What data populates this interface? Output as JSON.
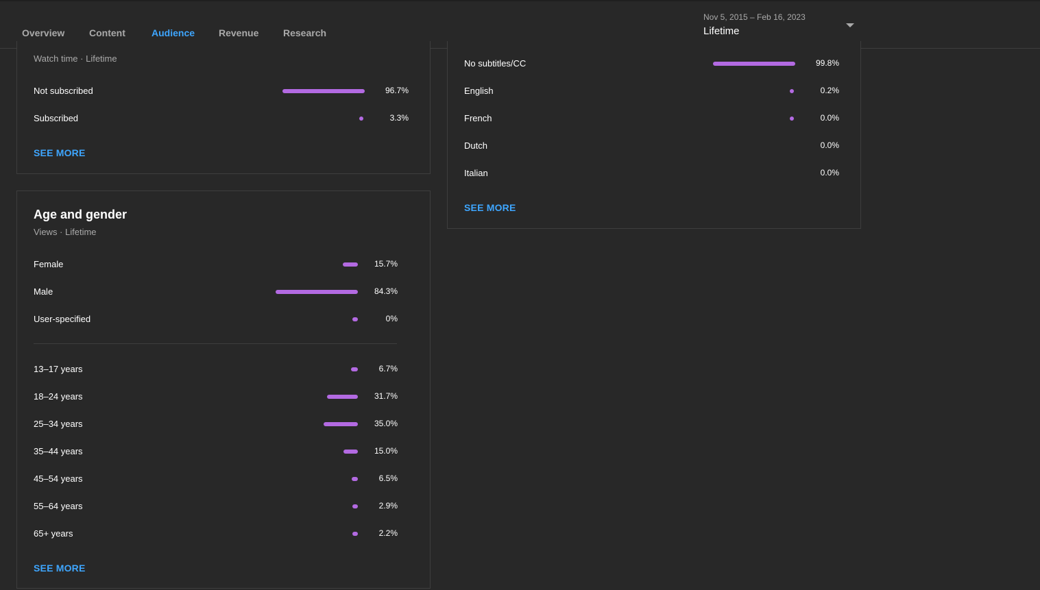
{
  "nav": {
    "tabs": [
      {
        "label": "Overview",
        "active": false
      },
      {
        "label": "Content",
        "active": false
      },
      {
        "label": "Audience",
        "active": true
      },
      {
        "label": "Revenue",
        "active": false
      },
      {
        "label": "Research",
        "active": false
      }
    ]
  },
  "date_filter": {
    "range": "Nov 5, 2015 – Feb 16, 2023",
    "label": "Lifetime"
  },
  "colors": {
    "accent": "#3ea6ff",
    "bar": "#b36ae2",
    "background": "#282828"
  },
  "subscription_card": {
    "subtitle": "Watch time · Lifetime",
    "rows": [
      {
        "label": "Not subscribed",
        "pct": "96.7%",
        "value": 96.7
      },
      {
        "label": "Subscribed",
        "pct": "3.3%",
        "value": 3.3
      }
    ],
    "see_more": "SEE MORE"
  },
  "age_gender_card": {
    "title": "Age and gender",
    "subtitle": "Views · Lifetime",
    "gender_rows": [
      {
        "label": "Female",
        "pct": "15.7%",
        "value": 15.7
      },
      {
        "label": "Male",
        "pct": "84.3%",
        "value": 84.3
      },
      {
        "label": "User-specified",
        "pct": "0%",
        "value": 0
      }
    ],
    "age_rows": [
      {
        "label": "13–17 years",
        "pct": "6.7%",
        "value": 6.7
      },
      {
        "label": "18–24 years",
        "pct": "31.7%",
        "value": 31.7
      },
      {
        "label": "25–34 years",
        "pct": "35.0%",
        "value": 35.0
      },
      {
        "label": "35–44 years",
        "pct": "15.0%",
        "value": 15.0
      },
      {
        "label": "45–54 years",
        "pct": "6.5%",
        "value": 6.5
      },
      {
        "label": "55–64 years",
        "pct": "2.9%",
        "value": 2.9
      },
      {
        "label": "65+ years",
        "pct": "2.2%",
        "value": 2.2
      }
    ],
    "see_more": "SEE MORE"
  },
  "subtitles_card": {
    "rows": [
      {
        "label": "No subtitles/CC",
        "pct": "99.8%",
        "value": 99.8,
        "marker": true
      },
      {
        "label": "English",
        "pct": "0.2%",
        "value": 0.2,
        "marker": true
      },
      {
        "label": "French",
        "pct": "0.0%",
        "value": 0.0,
        "marker": true
      },
      {
        "label": "Dutch",
        "pct": "0.0%",
        "value": 0.0,
        "marker": false
      },
      {
        "label": "Italian",
        "pct": "0.0%",
        "value": 0.0,
        "marker": false
      }
    ],
    "see_more": "SEE MORE"
  }
}
